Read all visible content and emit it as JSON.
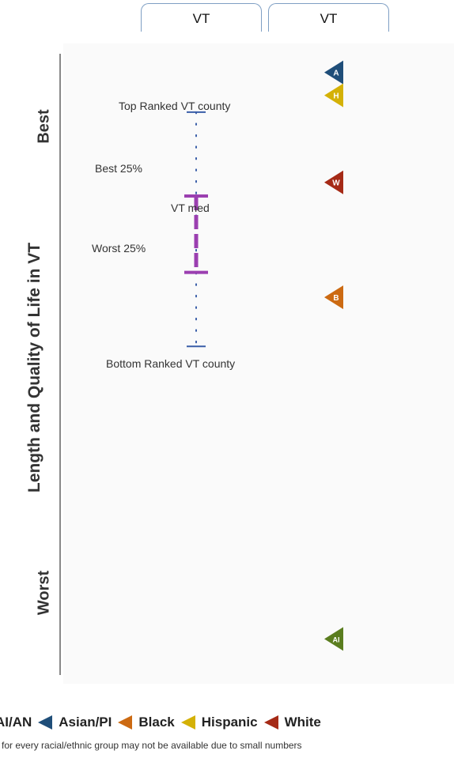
{
  "headers": [
    "VT",
    "VT"
  ],
  "y_axis": {
    "title": "Length and Quality of Life in VT",
    "top_label": "Best",
    "bottom_label": "Worst"
  },
  "annotations": {
    "top_ranked": "Top Ranked VT county",
    "best25": "Best 25%",
    "median": "VT med",
    "worst25": "Worst 25%",
    "bottom_ranked": "Bottom Ranked VT county"
  },
  "chart_data": {
    "type": "scatter",
    "title": "",
    "ylabel": "Length and Quality of Life in VT",
    "y_scale": "rank, higher = better",
    "ylim": [
      0,
      100
    ],
    "state_distribution": {
      "top_ranked_county": 90.6,
      "best_25": 77.1,
      "median": 70.0,
      "worst_25": 64.8,
      "bottom_ranked_county": 52.9
    },
    "groups": [
      {
        "code": "A",
        "name": "Asian/PI",
        "value": 97.0,
        "color": "#1f4e79"
      },
      {
        "code": "H",
        "name": "Hispanic",
        "value": 93.3,
        "color": "#d4b106"
      },
      {
        "code": "W",
        "name": "White",
        "value": 79.3,
        "color": "#a52a16"
      },
      {
        "code": "B",
        "name": "Black",
        "value": 60.8,
        "color": "#cc6a12"
      },
      {
        "code": "AI",
        "name": "AI/AN",
        "value": 5.8,
        "color": "#5a7d1f"
      }
    ]
  },
  "legend": [
    {
      "label": "AI/AN",
      "color": "#5a7d1f"
    },
    {
      "label": "Asian/PI",
      "color": "#1f4e79"
    },
    {
      "label": "Black",
      "color": "#cc6a12"
    },
    {
      "label": "Hispanic",
      "color": "#d4b106"
    },
    {
      "label": "White",
      "color": "#a52a16"
    }
  ],
  "footnote": "a for every racial/ethnic group may not be available due to small numbers"
}
